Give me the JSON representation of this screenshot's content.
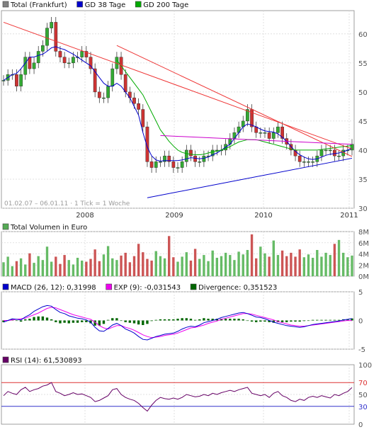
{
  "chart_data": [
    {
      "type": "candlestick",
      "legend": [
        {
          "name": "Total (Frankfurt)",
          "color": "#808080"
        },
        {
          "name": "GD 38 Tage",
          "color": "#0000cc"
        },
        {
          "name": "GD 200 Tage",
          "color": "#00aa00"
        }
      ],
      "x_ticks": [
        "2008",
        "2009",
        "2010",
        "2011"
      ],
      "y_ticks": [
        "60",
        "55",
        "50",
        "45",
        "40",
        "35",
        "30"
      ],
      "ylim": [
        30,
        64
      ],
      "footnote": "01.02.07 – 06.01.11 · 1 Tick = 1 Woche",
      "series": [
        {
          "name": "Total (Frankfurt)",
          "values": [
            52,
            53,
            53,
            51,
            53,
            56,
            54,
            55,
            57,
            58,
            61,
            62,
            57,
            56,
            55,
            55,
            56,
            56,
            57,
            56,
            54,
            50,
            49,
            49,
            51,
            54,
            56,
            53,
            50,
            49,
            48,
            47,
            44,
            38,
            37,
            38,
            38,
            39,
            38,
            37,
            37,
            38,
            40,
            39,
            38,
            38,
            39,
            39,
            40,
            40,
            40,
            41,
            42,
            43,
            44,
            45,
            47,
            44,
            43,
            43,
            43,
            42,
            43,
            44,
            42,
            41,
            40,
            39,
            38,
            38,
            38,
            38,
            39,
            40,
            40,
            40,
            39,
            39,
            40,
            40,
            41
          ]
        },
        {
          "name": "GD 38 Tage",
          "values": [
            52,
            52.5,
            53,
            53.2,
            54,
            55,
            56,
            56,
            56.3,
            56.5,
            57,
            57.6,
            57.8,
            57.5,
            57.3,
            56.9,
            56.5,
            56,
            55.5,
            55,
            54.5,
            53.5,
            52.5,
            51.5,
            51,
            51,
            51.5,
            51,
            50,
            49,
            47.5,
            46,
            43,
            40.5,
            39,
            38.3,
            38.1,
            38.2,
            38.2,
            38.2,
            38.2,
            38.3,
            38.5,
            38.7,
            38.6,
            38.5,
            38.6,
            38.8,
            39.2,
            39.5,
            40,
            40.5,
            41,
            42,
            43,
            44,
            44.5,
            44.3,
            44,
            43.6,
            43.3,
            43.2,
            43.1,
            42.8,
            42.2,
            41.5,
            40.6,
            39.8,
            39.2,
            38.8,
            38.5,
            38.4,
            38.5,
            38.8,
            39.1,
            39.3,
            39.4,
            39.5,
            39.7,
            40,
            40.3
          ]
        },
        {
          "name": "GD 200 Tage",
          "values": [
            null,
            null,
            null,
            null,
            null,
            null,
            null,
            null,
            null,
            null,
            null,
            null,
            null,
            null,
            null,
            null,
            null,
            null,
            null,
            null,
            null,
            null,
            null,
            null,
            null,
            null,
            55.5,
            54.5,
            53.5,
            52.5,
            51.5,
            50.5,
            49.5,
            48,
            46.5,
            45,
            43.5,
            42.5,
            41.5,
            40.7,
            40,
            39.6,
            39.4,
            39.3,
            39.2,
            39.2,
            39.3,
            39.5,
            39.7,
            39.8,
            40,
            40.3,
            40.6,
            41,
            41.4,
            41.6,
            41.8,
            41.8,
            41.8,
            41.6,
            41.4,
            41.2,
            41,
            40.8,
            40.6,
            40.4,
            40.2,
            40,
            40,
            40,
            40,
            40,
            40,
            40.1,
            40.2,
            40.3,
            40.4,
            40.5,
            40.6,
            40.7,
            40.8
          ]
        }
      ],
      "trendlines": [
        {
          "color": "#ee3333",
          "points": [
            [
              0,
              62
            ],
            [
              80,
              40.2
            ]
          ]
        },
        {
          "color": "#ee3333",
          "points": [
            [
              26,
              58
            ],
            [
              80,
              38.9
            ]
          ]
        },
        {
          "color": "#0000cc",
          "points": [
            [
              33,
              31.8
            ],
            [
              80,
              38.6
            ]
          ]
        },
        {
          "color": "#cc00cc",
          "points": [
            [
              36,
              42.5
            ],
            [
              80,
              41
            ]
          ]
        }
      ]
    },
    {
      "type": "bar",
      "legend": [
        {
          "name": "Total Volumen in Euro",
          "color": "#55aa55"
        }
      ],
      "y_ticks": [
        "8M",
        "6M",
        "4M",
        "2M",
        "0M"
      ],
      "ylim": [
        0,
        8
      ],
      "values": [
        2.5,
        3.5,
        1.8,
        2.7,
        3.2,
        2.1,
        4.1,
        2.4,
        3.6,
        2.9,
        5.3,
        2.6,
        3.5,
        2.2,
        3.8,
        2.9,
        2.1,
        3.3,
        2.8,
        2.6,
        3.1,
        4.8,
        2.7,
        3.9,
        5.4,
        3.2,
        2.9,
        3.7,
        4.2,
        2.5,
        3.6,
        5.8,
        4.3,
        3.1,
        2.8,
        4.5,
        3.6,
        3.2,
        7.2,
        3.4,
        2.6,
        3.5,
        4.3,
        2.8,
        4.9,
        3.1,
        3.8,
        2.7,
        4.6,
        3.3,
        3.6,
        4.2,
        3.8,
        2.9,
        4.4,
        3.9,
        4.7,
        7.5,
        3.2,
        5.3,
        4.1,
        3.5,
        6.4,
        3.8,
        4.6,
        3.6,
        4.2,
        3.5,
        4.8,
        3.4,
        3.9,
        3.3,
        4.7,
        3.5,
        4.2,
        3.8,
        5.8,
        6.5,
        4.2,
        3.4,
        3.7
      ]
    },
    {
      "type": "line",
      "legend": [
        {
          "name": "MACD (26, 12): 0,31998",
          "color": "#0000cc"
        },
        {
          "name": "EXP (9): -0,031543",
          "color": "#ee00ee"
        },
        {
          "name": "Divergence: 0,351523",
          "color": "#006600"
        }
      ],
      "y_ticks": [
        "5",
        "0",
        "-5"
      ],
      "ylim": [
        -5,
        5
      ],
      "series": [
        {
          "name": "MACD (26, 12)",
          "values": [
            -0.3,
            0,
            0.3,
            0.2,
            0.1,
            0.6,
            1,
            1.6,
            2,
            2.4,
            2.6,
            2.5,
            1.9,
            1.4,
            1.2,
            0.8,
            0.6,
            0.4,
            0.3,
            0.1,
            -0.3,
            -1.2,
            -1.8,
            -1.9,
            -1.4,
            -0.8,
            -0.5,
            -0.9,
            -1.5,
            -1.8,
            -2.2,
            -2.8,
            -3.3,
            -3.4,
            -3.1,
            -2.8,
            -2.6,
            -2.4,
            -2.3,
            -2.2,
            -1.9,
            -1.5,
            -1.2,
            -1,
            -1.1,
            -0.8,
            -0.4,
            -0.2,
            0,
            0.2,
            0.5,
            0.7,
            0.9,
            1.1,
            1.3,
            1.4,
            1.2,
            0.9,
            0.6,
            0.5,
            0.3,
            0,
            -0.3,
            -0.5,
            -0.7,
            -0.9,
            -1,
            -1.1,
            -1.2,
            -1.1,
            -0.9,
            -0.7,
            -0.6,
            -0.5,
            -0.4,
            -0.3,
            -0.2,
            -0.1,
            0.1,
            0.2,
            0.32
          ]
        },
        {
          "name": "EXP (9)",
          "values": [
            0,
            0,
            0.1,
            0.2,
            0.3,
            0.4,
            0.7,
            1,
            1.3,
            1.7,
            2.1,
            2.3,
            2.2,
            1.9,
            1.6,
            1.3,
            1,
            0.8,
            0.6,
            0.4,
            0.2,
            -0.3,
            -0.9,
            -1.3,
            -1.5,
            -1.2,
            -0.9,
            -0.9,
            -1.2,
            -1.4,
            -1.7,
            -2.1,
            -2.5,
            -2.8,
            -3,
            -2.9,
            -2.8,
            -2.6,
            -2.5,
            -2.4,
            -2.2,
            -1.9,
            -1.6,
            -1.3,
            -1.2,
            -1,
            -0.8,
            -0.5,
            -0.3,
            -0.1,
            0.2,
            0.4,
            0.6,
            0.8,
            1,
            1.2,
            1.2,
            1.1,
            0.9,
            0.7,
            0.5,
            0.3,
            0.1,
            -0.2,
            -0.4,
            -0.6,
            -0.8,
            -0.9,
            -1,
            -1,
            -0.9,
            -0.8,
            -0.7,
            -0.6,
            -0.5,
            -0.4,
            -0.3,
            -0.2,
            -0.1,
            0,
            -0.03
          ]
        }
      ]
    },
    {
      "type": "line",
      "legend": [
        {
          "name": "RSI (14): 61,530893",
          "color": "#660066"
        }
      ],
      "y_ticks": [
        "100",
        "70",
        "50",
        "30",
        "0"
      ],
      "ylim": [
        0,
        100
      ],
      "levels": [
        70,
        30
      ],
      "series": [
        {
          "name": "RSI (14)",
          "values": [
            48,
            55,
            52,
            50,
            58,
            62,
            55,
            58,
            60,
            64,
            66,
            70,
            55,
            52,
            48,
            50,
            53,
            50,
            51,
            48,
            45,
            38,
            40,
            44,
            48,
            58,
            60,
            50,
            45,
            42,
            40,
            35,
            28,
            22,
            32,
            40,
            45,
            43,
            42,
            44,
            42,
            45,
            50,
            48,
            46,
            47,
            50,
            48,
            52,
            50,
            53,
            55,
            57,
            55,
            58,
            60,
            62,
            52,
            50,
            48,
            50,
            45,
            52,
            55,
            48,
            45,
            40,
            38,
            42,
            40,
            45,
            47,
            45,
            48,
            46,
            44,
            50,
            48,
            52,
            55,
            61.5
          ]
        }
      ]
    }
  ]
}
